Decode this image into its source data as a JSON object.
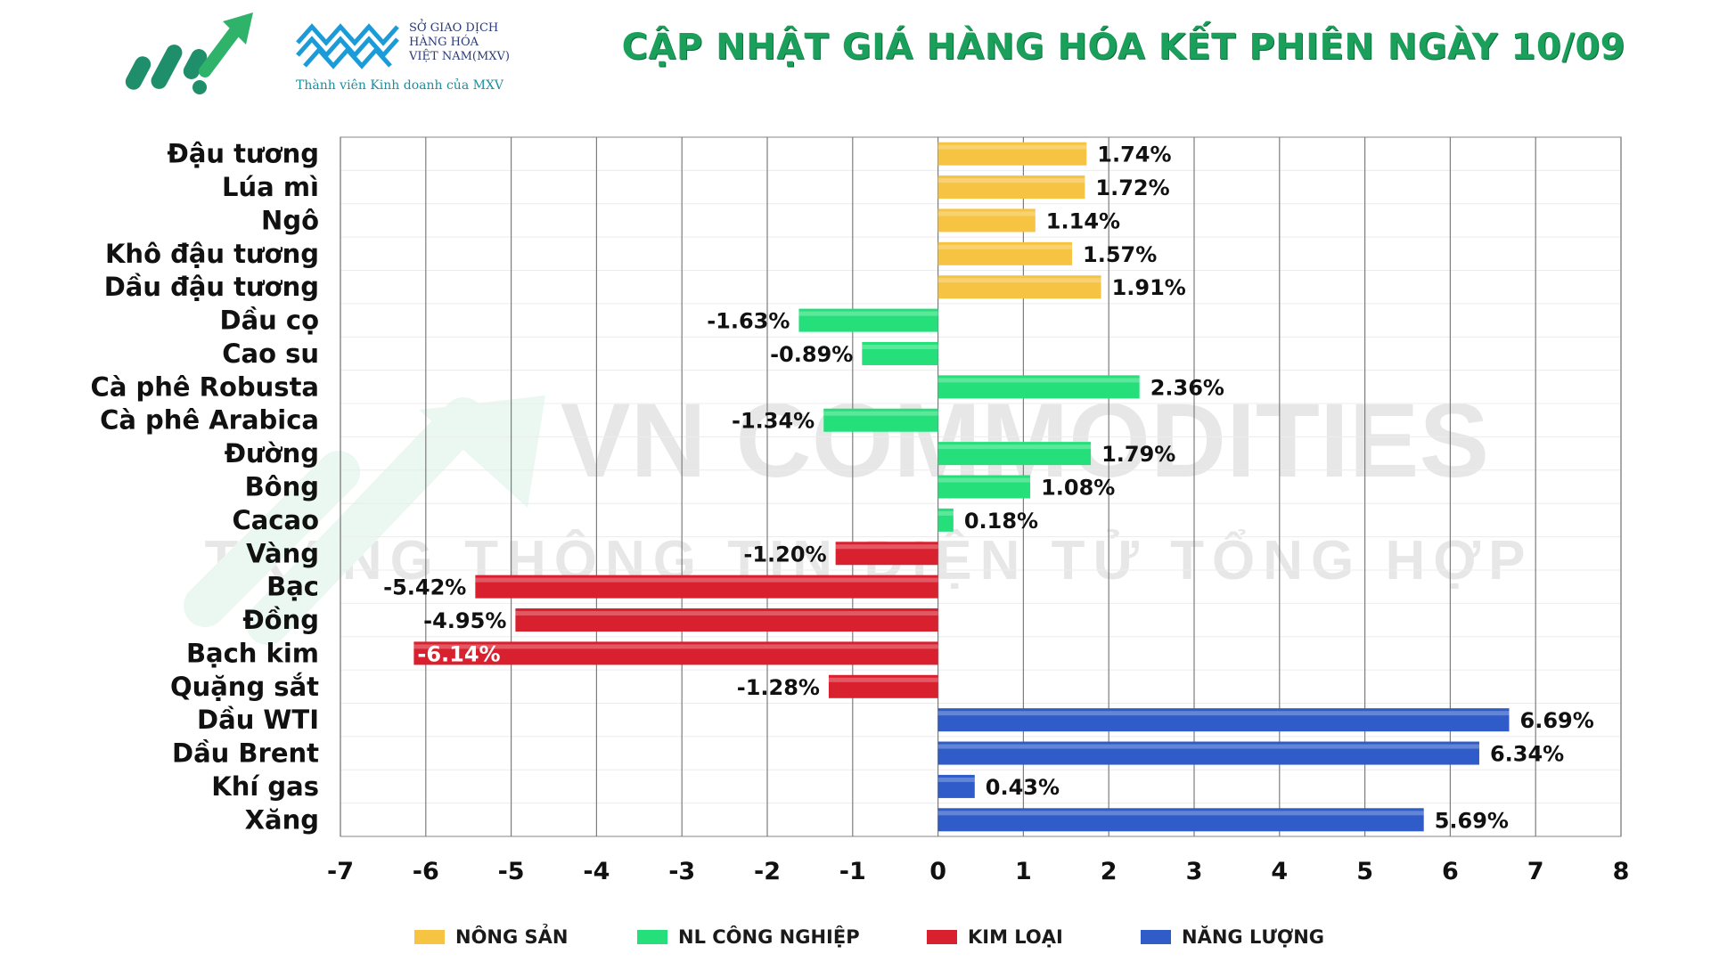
{
  "header": {
    "title": "CẬP NHẬT GIÁ HÀNG HÓA KẾT PHIÊN NGÀY 10/09",
    "exchange_line1": "SỞ GIAO DỊCH",
    "exchange_line2": "HÀNG HÓA",
    "exchange_line3": "VIỆT NAM(MXV)",
    "member_text": "Thành viên Kinh doanh của MXV",
    "logo_icon": "growth-arrow-logo",
    "exchange_logo_icon": "mxv-waves-logo"
  },
  "watermark": {
    "line1": "VN COMMODITIES",
    "line2": "TRANG THÔNG TIN ĐIỆN TỬ TỔNG HỢP"
  },
  "colors": {
    "nong_san": "#F6C342",
    "nl_cong_nghiep": "#25E07A",
    "kim_loai": "#D8202F",
    "nang_luong": "#2F5CC8",
    "title": "#1AA05A"
  },
  "legend": [
    {
      "label": "NÔNG SẢN",
      "group": "nong_san"
    },
    {
      "label": "NL CÔNG NGHIỆP",
      "group": "nl_cong_nghiep"
    },
    {
      "label": "KIM LOẠI",
      "group": "kim_loai"
    },
    {
      "label": "NĂNG LƯỢNG",
      "group": "nang_luong"
    }
  ],
  "chart_data": {
    "type": "bar",
    "orientation": "horizontal",
    "title": "",
    "xlabel": "",
    "ylabel": "",
    "xlim": [
      -7,
      8
    ],
    "xticks": [
      -7,
      -6,
      -5,
      -4,
      -3,
      -2,
      -1,
      0,
      1,
      2,
      3,
      4,
      5,
      6,
      7,
      8
    ],
    "grid": true,
    "legend_position": "bottom",
    "categories": [
      "Đậu tương",
      "Lúa mì",
      "Ngô",
      "Khô đậu tương",
      "Dầu đậu tương",
      "Dầu cọ",
      "Cao su",
      "Cà phê Robusta",
      "Cà phê Arabica",
      "Đường",
      "Bông",
      "Cacao",
      "Vàng",
      "Bạc",
      "Đồng",
      "Bạch kim",
      "Quặng sắt",
      "Dầu WTI",
      "Dầu Brent",
      "Khí gas",
      "Xăng"
    ],
    "values": [
      1.74,
      1.72,
      1.14,
      1.57,
      1.91,
      -1.63,
      -0.89,
      2.36,
      -1.34,
      1.79,
      1.08,
      0.18,
      -1.2,
      -5.42,
      -4.95,
      -6.14,
      -1.28,
      6.69,
      6.34,
      0.43,
      5.69
    ],
    "value_labels": [
      "1.74%",
      "1.72%",
      "1.14%",
      "1.57%",
      "1.91%",
      "-1.63%",
      "-0.89%",
      "2.36%",
      "-1.34%",
      "1.79%",
      "1.08%",
      "0.18%",
      "-1.20%",
      "-5.42%",
      "-4.95%",
      "-6.14%",
      "-1.28%",
      "6.69%",
      "6.34%",
      "0.43%",
      "5.69%"
    ],
    "groups": [
      "nong_san",
      "nong_san",
      "nong_san",
      "nong_san",
      "nong_san",
      "nl_cong_nghiep",
      "nl_cong_nghiep",
      "nl_cong_nghiep",
      "nl_cong_nghiep",
      "nl_cong_nghiep",
      "nl_cong_nghiep",
      "nl_cong_nghiep",
      "kim_loai",
      "kim_loai",
      "kim_loai",
      "kim_loai",
      "kim_loai",
      "nang_luong",
      "nang_luong",
      "nang_luong",
      "nang_luong"
    ]
  }
}
